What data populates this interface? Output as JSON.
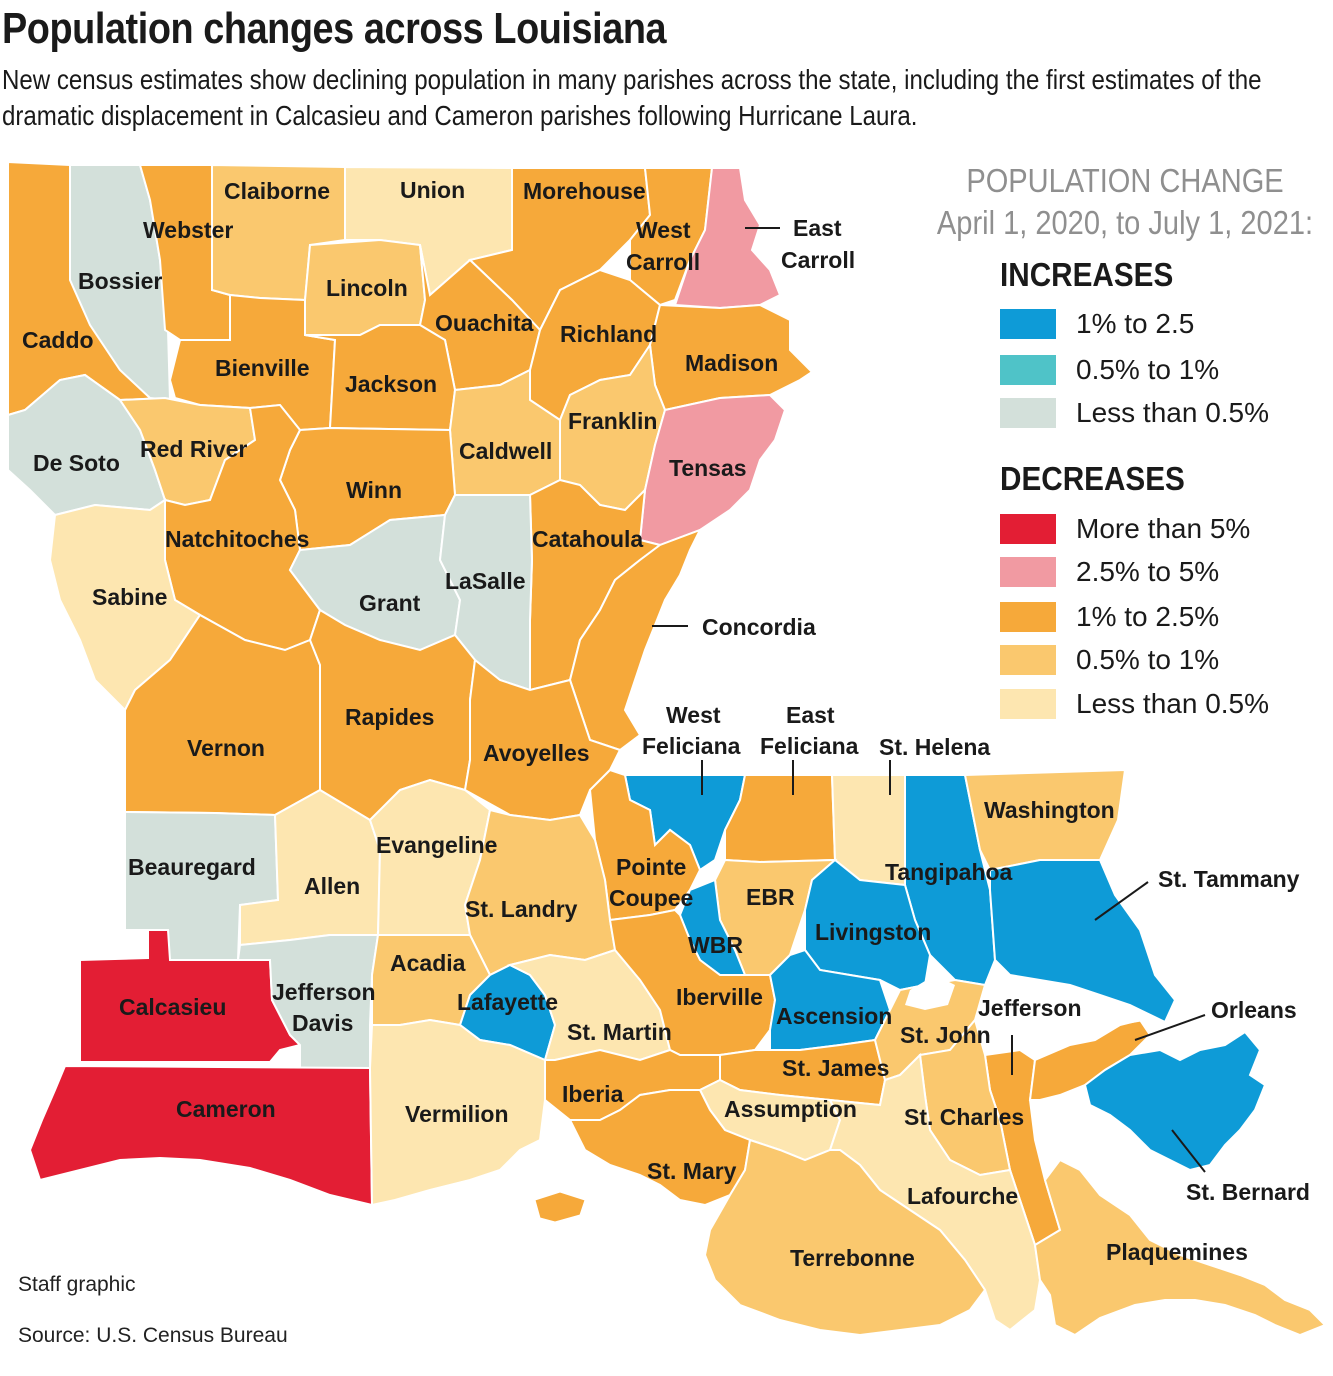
{
  "title": "Population changes across Louisiana",
  "subtitle": "New census estimates show declining population in many parishes across the state, including the first estimates of the dramatic displacement in Calcasieu and Cameron parishes following Hurricane Laura.",
  "legend": {
    "heading_line1": "POPULATION CHANGE",
    "heading_line2": "April 1, 2020, to July 1, 2021:",
    "increases_title": "INCREASES",
    "increases": [
      {
        "label": "1% to 2.5",
        "color": "#0e9bd7"
      },
      {
        "label": "0.5% to 1%",
        "color": "#4fc3c8"
      },
      {
        "label": "Less than 0.5%",
        "color": "#d3e0da"
      }
    ],
    "decreases_title": "DECREASES",
    "decreases": [
      {
        "label": "More than 5%",
        "color": "#e31e34"
      },
      {
        "label": "2.5% to 5%",
        "color": "#f19aa2"
      },
      {
        "label": "1% to 2.5%",
        "color": "#f6a93a"
      },
      {
        "label": "0.5% to 1%",
        "color": "#fac86e"
      },
      {
        "label": "Less than 0.5%",
        "color": "#fde6b0"
      }
    ]
  },
  "parishes": [
    {
      "name": "Caddo",
      "change": "Decrease 1% to 2.5%",
      "color": "#f6a93a"
    },
    {
      "name": "Bossier",
      "change": "Increase less than 0.5%",
      "color": "#d3e0da"
    },
    {
      "name": "Webster",
      "change": "Decrease 1% to 2.5%",
      "color": "#f6a93a"
    },
    {
      "name": "Claiborne",
      "change": "Decrease 0.5% to 1%",
      "color": "#fac86e"
    },
    {
      "name": "Union",
      "change": "Decrease less than 0.5%",
      "color": "#fde6b0"
    },
    {
      "name": "Morehouse",
      "change": "Decrease 1% to 2.5%",
      "color": "#f6a93a"
    },
    {
      "name": "West Carroll",
      "change": "Decrease 1% to 2.5%",
      "color": "#f6a93a"
    },
    {
      "name": "East Carroll",
      "change": "Decrease 2.5% to 5%",
      "color": "#f19aa2"
    },
    {
      "name": "Lincoln",
      "change": "Decrease 0.5% to 1%",
      "color": "#fac86e"
    },
    {
      "name": "Ouachita",
      "change": "Decrease 1% to 2.5%",
      "color": "#f6a93a"
    },
    {
      "name": "Richland",
      "change": "Decrease 1% to 2.5%",
      "color": "#f6a93a"
    },
    {
      "name": "Madison",
      "change": "Decrease 1% to 2.5%",
      "color": "#f6a93a"
    },
    {
      "name": "Bienville",
      "change": "Decrease 1% to 2.5%",
      "color": "#f6a93a"
    },
    {
      "name": "Jackson",
      "change": "Decrease 1% to 2.5%",
      "color": "#f6a93a"
    },
    {
      "name": "De Soto",
      "change": "Increase less than 0.5%",
      "color": "#d3e0da"
    },
    {
      "name": "Red River",
      "change": "Decrease 0.5% to 1%",
      "color": "#fac86e"
    },
    {
      "name": "Caldwell",
      "change": "Decrease 0.5% to 1%",
      "color": "#fac86e"
    },
    {
      "name": "Franklin",
      "change": "Decrease 0.5% to 1%",
      "color": "#fac86e"
    },
    {
      "name": "Tensas",
      "change": "Decrease 2.5% to 5%",
      "color": "#f19aa2"
    },
    {
      "name": "Winn",
      "change": "Decrease 1% to 2.5%",
      "color": "#f6a93a"
    },
    {
      "name": "Natchitoches",
      "change": "Decrease 1% to 2.5%",
      "color": "#f6a93a"
    },
    {
      "name": "Catahoula",
      "change": "Decrease 1% to 2.5%",
      "color": "#f6a93a"
    },
    {
      "name": "Sabine",
      "change": "Decrease less than 0.5%",
      "color": "#fde6b0"
    },
    {
      "name": "Grant",
      "change": "Increase less than 0.5%",
      "color": "#d3e0da"
    },
    {
      "name": "LaSalle",
      "change": "Increase less than 0.5%",
      "color": "#d3e0da"
    },
    {
      "name": "Concordia",
      "change": "Decrease 1% to 2.5%",
      "color": "#f6a93a"
    },
    {
      "name": "Vernon",
      "change": "Decrease 1% to 2.5%",
      "color": "#f6a93a"
    },
    {
      "name": "Rapides",
      "change": "Decrease 1% to 2.5%",
      "color": "#f6a93a"
    },
    {
      "name": "Avoyelles",
      "change": "Decrease 1% to 2.5%",
      "color": "#f6a93a"
    },
    {
      "name": "West Feliciana",
      "change": "Increase 1% to 2.5",
      "color": "#0e9bd7"
    },
    {
      "name": "East Feliciana",
      "change": "Decrease 1% to 2.5%",
      "color": "#f6a93a"
    },
    {
      "name": "St. Helena",
      "change": "Decrease less than 0.5%",
      "color": "#fde6b0"
    },
    {
      "name": "Washington",
      "change": "Decrease 0.5% to 1%",
      "color": "#fac86e"
    },
    {
      "name": "Beauregard",
      "change": "Increase less than 0.5%",
      "color": "#d3e0da"
    },
    {
      "name": "Allen",
      "change": "Decrease less than 0.5%",
      "color": "#fde6b0"
    },
    {
      "name": "Evangeline",
      "change": "Decrease less than 0.5%",
      "color": "#fde6b0"
    },
    {
      "name": "St. Landry",
      "change": "Decrease 0.5% to 1%",
      "color": "#fac86e"
    },
    {
      "name": "Pointe Coupee",
      "change": "Decrease 1% to 2.5%",
      "color": "#f6a93a"
    },
    {
      "name": "EBR",
      "change": "Decrease 0.5% to 1%",
      "color": "#fac86e"
    },
    {
      "name": "Tangipahoa",
      "change": "Increase 1% to 2.5",
      "color": "#0e9bd7"
    },
    {
      "name": "St. Tammany",
      "change": "Increase 1% to 2.5",
      "color": "#0e9bd7"
    },
    {
      "name": "Livingston",
      "change": "Increase 1% to 2.5",
      "color": "#0e9bd7"
    },
    {
      "name": "WBR",
      "change": "Increase 1% to 2.5",
      "color": "#0e9bd7"
    },
    {
      "name": "Calcasieu",
      "change": "Decrease more than 5%",
      "color": "#e31e34"
    },
    {
      "name": "Jefferson Davis",
      "change": "Increase less than 0.5%",
      "color": "#d3e0da"
    },
    {
      "name": "Acadia",
      "change": "Decrease 0.5% to 1%",
      "color": "#fac86e"
    },
    {
      "name": "Lafayette",
      "change": "Increase 1% to 2.5",
      "color": "#0e9bd7"
    },
    {
      "name": "St. Martin",
      "change": "Decrease less than 0.5%",
      "color": "#fde6b0"
    },
    {
      "name": "Iberville",
      "change": "Decrease 1% to 2.5%",
      "color": "#f6a93a"
    },
    {
      "name": "Ascension",
      "change": "Increase 1% to 2.5",
      "color": "#0e9bd7"
    },
    {
      "name": "Jefferson",
      "change": "Decrease 1% to 2.5%",
      "color": "#f6a93a"
    },
    {
      "name": "Orleans",
      "change": "Decrease 1% to 2.5%",
      "color": "#f6a93a"
    },
    {
      "name": "St. John",
      "change": "Decrease 0.5% to 1%",
      "color": "#fac86e"
    },
    {
      "name": "St. James",
      "change": "Decrease 1% to 2.5%",
      "color": "#f6a93a"
    },
    {
      "name": "Cameron",
      "change": "Decrease more than 5%",
      "color": "#e31e34"
    },
    {
      "name": "Vermilion",
      "change": "Decrease less than 0.5%",
      "color": "#fde6b0"
    },
    {
      "name": "Iberia",
      "change": "Decrease 1% to 2.5%",
      "color": "#f6a93a"
    },
    {
      "name": "Assumption",
      "change": "Decrease less than 0.5%",
      "color": "#fde6b0"
    },
    {
      "name": "St. Charles",
      "change": "Decrease 0.5% to 1%",
      "color": "#fac86e"
    },
    {
      "name": "St. Mary",
      "change": "Decrease 1% to 2.5%",
      "color": "#f6a93a"
    },
    {
      "name": "Lafourche",
      "change": "Decrease less than 0.5%",
      "color": "#fde6b0"
    },
    {
      "name": "Terrebonne",
      "change": "Decrease 0.5% to 1%",
      "color": "#fac86e"
    },
    {
      "name": "Plaquemines",
      "change": "Decrease 0.5% to 1%",
      "color": "#fac86e"
    },
    {
      "name": "St. Bernard",
      "change": "Increase 1% to 2.5",
      "color": "#0e9bd7"
    }
  ],
  "labels": {
    "west_feliciana_1": "West",
    "west_feliciana_2": "Feliciana",
    "east_feliciana_1": "East",
    "east_feliciana_2": "Feliciana",
    "west_carroll_1": "West",
    "west_carroll_2": "Carroll",
    "east_carroll_1": "East",
    "east_carroll_2": "Carroll",
    "pointe_coupee_1": "Pointe",
    "pointe_coupee_2": "Coupee",
    "jefferson_davis_1": "Jefferson",
    "jefferson_davis_2": "Davis"
  },
  "credits": {
    "staff": "Staff graphic",
    "source": "Source: U.S. Census Bureau"
  }
}
